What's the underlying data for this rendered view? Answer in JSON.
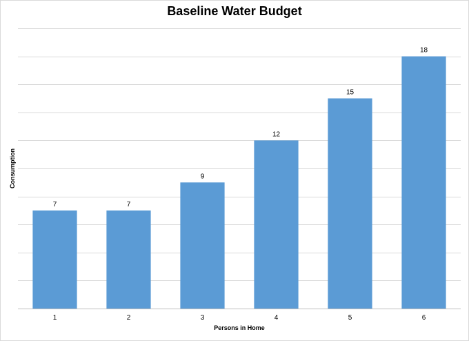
{
  "chart_data": {
    "type": "bar",
    "title": "Baseline Water Budget",
    "xlabel": "Persons in Home",
    "ylabel": "Consumption",
    "categories": [
      "1",
      "2",
      "3",
      "4",
      "5",
      "6"
    ],
    "values": [
      7,
      7,
      9,
      12,
      15,
      18
    ],
    "ylim": [
      0,
      20
    ],
    "y_tick_step": 2,
    "y_tick_labels_shown": false,
    "grid": true,
    "data_labels": true,
    "legend": "none",
    "bar_color": "#5b9bd5",
    "grid_color": "#d9d9d9"
  }
}
